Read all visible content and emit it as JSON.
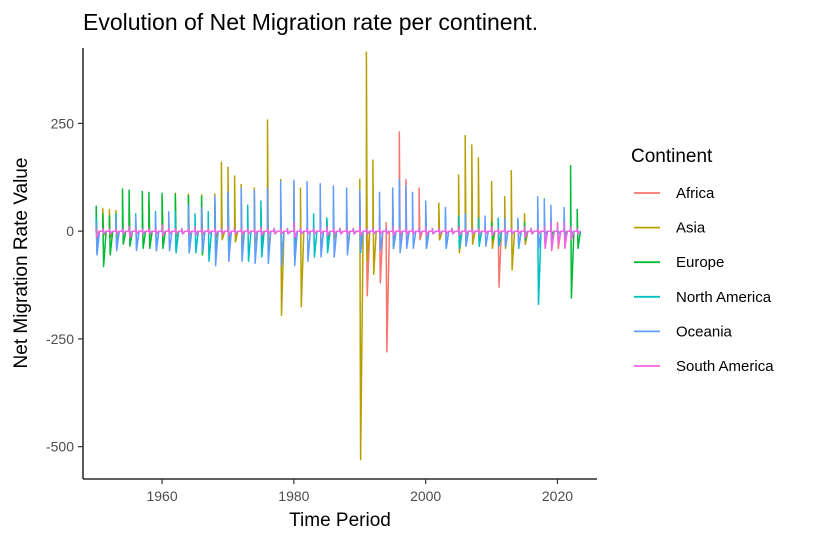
{
  "chart_data": {
    "type": "line",
    "title": "Evolution of Net Migration rate per continent.",
    "xlabel": "Time Period",
    "ylabel": "Net Migration Rate Value",
    "xlim": [
      1948,
      2026
    ],
    "ylim": [
      -575,
      425
    ],
    "xticks": [
      1960,
      1980,
      2000,
      2020
    ],
    "yticks": [
      -500,
      -250,
      0,
      250
    ],
    "grid": false,
    "legend": {
      "title": "Continent",
      "position": "right"
    },
    "series": [
      {
        "name": "Africa",
        "color": "#F8766D",
        "spikes": [
          [
            1955,
            5,
            -5
          ],
          [
            1960,
            10,
            -8
          ],
          [
            1970,
            12,
            -10
          ],
          [
            1980,
            20,
            -20
          ],
          [
            1985,
            25,
            -15
          ],
          [
            1990,
            90,
            -40
          ],
          [
            1991,
            55,
            -150
          ],
          [
            1993,
            40,
            -120
          ],
          [
            1994,
            20,
            -280
          ],
          [
            1996,
            230,
            -20
          ],
          [
            1997,
            120,
            -30
          ],
          [
            1999,
            100,
            -20
          ],
          [
            2002,
            30,
            -20
          ],
          [
            2005,
            25,
            -15
          ],
          [
            2011,
            20,
            -130
          ],
          [
            2015,
            15,
            -30
          ],
          [
            2020,
            20,
            -40
          ]
        ]
      },
      {
        "name": "Asia",
        "color": "#B79F00",
        "spikes": [
          [
            1951,
            52,
            -10
          ],
          [
            1952,
            50,
            -15
          ],
          [
            1953,
            48,
            -20
          ],
          [
            1955,
            60,
            -10
          ],
          [
            1958,
            70,
            -12
          ],
          [
            1960,
            78,
            -10
          ],
          [
            1962,
            88,
            -12
          ],
          [
            1964,
            86,
            -10
          ],
          [
            1966,
            84,
            -10
          ],
          [
            1968,
            86,
            -15
          ],
          [
            1969,
            160,
            -20
          ],
          [
            1970,
            148,
            -20
          ],
          [
            1971,
            128,
            -25
          ],
          [
            1972,
            108,
            -30
          ],
          [
            1974,
            100,
            -30
          ],
          [
            1976,
            258,
            -40
          ],
          [
            1978,
            120,
            -195
          ],
          [
            1980,
            108,
            -60
          ],
          [
            1981,
            100,
            -175
          ],
          [
            1984,
            60,
            -40
          ],
          [
            1986,
            50,
            -20
          ],
          [
            1988,
            40,
            -30
          ],
          [
            1990,
            120,
            -530
          ],
          [
            1991,
            415,
            -70
          ],
          [
            1992,
            165,
            -100
          ],
          [
            1995,
            100,
            -40
          ],
          [
            2000,
            60,
            -30
          ],
          [
            2002,
            65,
            -20
          ],
          [
            2005,
            130,
            -50
          ],
          [
            2006,
            222,
            -30
          ],
          [
            2007,
            200,
            -30
          ],
          [
            2008,
            170,
            -30
          ],
          [
            2010,
            115,
            -40
          ],
          [
            2012,
            80,
            -40
          ],
          [
            2013,
            140,
            -90
          ],
          [
            2015,
            40,
            -30
          ],
          [
            2019,
            30,
            -20
          ]
        ]
      },
      {
        "name": "Europe",
        "color": "#00BA38",
        "spikes": [
          [
            1950,
            58,
            -20
          ],
          [
            1951,
            40,
            -82
          ],
          [
            1952,
            35,
            -55
          ],
          [
            1954,
            98,
            -30
          ],
          [
            1955,
            95,
            -35
          ],
          [
            1957,
            92,
            -40
          ],
          [
            1958,
            90,
            -40
          ],
          [
            1960,
            88,
            -40
          ],
          [
            1962,
            86,
            -45
          ],
          [
            1964,
            82,
            -50
          ],
          [
            1966,
            80,
            -55
          ],
          [
            1968,
            75,
            -50
          ],
          [
            1970,
            70,
            -45
          ],
          [
            1975,
            50,
            -30
          ],
          [
            1980,
            40,
            -40
          ],
          [
            1985,
            30,
            -20
          ],
          [
            1990,
            20,
            -20
          ],
          [
            1995,
            20,
            -20
          ],
          [
            2000,
            20,
            -20
          ],
          [
            2005,
            15,
            -20
          ],
          [
            2010,
            20,
            -20
          ],
          [
            2015,
            20,
            -20
          ],
          [
            2022,
            152,
            -155
          ],
          [
            2023,
            50,
            -40
          ]
        ]
      },
      {
        "name": "North America",
        "color": "#00BFC4",
        "spikes": [
          [
            1950,
            30,
            -50
          ],
          [
            1953,
            40,
            -40
          ],
          [
            1956,
            40,
            -40
          ],
          [
            1959,
            45,
            -45
          ],
          [
            1962,
            45,
            -50
          ],
          [
            1965,
            40,
            -50
          ],
          [
            1967,
            45,
            -70
          ],
          [
            1970,
            90,
            -60
          ],
          [
            1973,
            60,
            -70
          ],
          [
            1975,
            70,
            -60
          ],
          [
            1978,
            50,
            -60
          ],
          [
            1980,
            50,
            -60
          ],
          [
            1983,
            40,
            -60
          ],
          [
            1985,
            30,
            -50
          ],
          [
            1990,
            30,
            -50
          ],
          [
            1995,
            30,
            -40
          ],
          [
            2000,
            40,
            -40
          ],
          [
            2003,
            40,
            -40
          ],
          [
            2005,
            35,
            -40
          ],
          [
            2008,
            30,
            -35
          ],
          [
            2011,
            30,
            -35
          ],
          [
            2014,
            25,
            -40
          ],
          [
            2017,
            40,
            -170
          ],
          [
            2019,
            20,
            -30
          ],
          [
            2021,
            30,
            -20
          ]
        ]
      },
      {
        "name": "Oceania",
        "color": "#619CFF",
        "spikes": [
          [
            1950,
            20,
            -55
          ],
          [
            1953,
            30,
            -45
          ],
          [
            1956,
            35,
            -45
          ],
          [
            1959,
            40,
            -45
          ],
          [
            1961,
            45,
            -45
          ],
          [
            1964,
            60,
            -50
          ],
          [
            1966,
            55,
            -45
          ],
          [
            1968,
            80,
            -80
          ],
          [
            1970,
            90,
            -70
          ],
          [
            1972,
            100,
            -70
          ],
          [
            1974,
            95,
            -75
          ],
          [
            1976,
            100,
            -75
          ],
          [
            1978,
            115,
            -80
          ],
          [
            1980,
            118,
            -80
          ],
          [
            1982,
            115,
            -70
          ],
          [
            1984,
            110,
            -60
          ],
          [
            1986,
            105,
            -60
          ],
          [
            1988,
            100,
            -55
          ],
          [
            1990,
            95,
            -45
          ],
          [
            1993,
            90,
            -45
          ],
          [
            1995,
            100,
            -40
          ],
          [
            1996,
            120,
            -50
          ],
          [
            1997,
            105,
            -40
          ],
          [
            1998,
            90,
            -40
          ],
          [
            2000,
            70,
            -40
          ],
          [
            2003,
            55,
            -40
          ],
          [
            2006,
            40,
            -35
          ],
          [
            2009,
            35,
            -35
          ],
          [
            2012,
            30,
            -35
          ],
          [
            2014,
            30,
            -35
          ],
          [
            2017,
            80,
            -40
          ],
          [
            2018,
            75,
            -30
          ],
          [
            2019,
            60,
            -40
          ],
          [
            2021,
            55,
            -30
          ]
        ]
      },
      {
        "name": "South America",
        "color": "#F564E3",
        "spikes": [
          [
            1950,
            5,
            -15
          ],
          [
            1955,
            10,
            -15
          ],
          [
            1960,
            15,
            -10
          ],
          [
            1965,
            10,
            -10
          ],
          [
            1970,
            10,
            -10
          ],
          [
            1975,
            10,
            -10
          ],
          [
            1980,
            20,
            -15
          ],
          [
            1985,
            10,
            -10
          ],
          [
            1990,
            10,
            -10
          ],
          [
            1995,
            10,
            -10
          ],
          [
            2000,
            10,
            -10
          ],
          [
            2005,
            10,
            -10
          ],
          [
            2010,
            10,
            -10
          ],
          [
            2015,
            10,
            -15
          ],
          [
            2018,
            10,
            -40
          ],
          [
            2019,
            20,
            -45
          ],
          [
            2020,
            15,
            -30
          ],
          [
            2021,
            20,
            -40
          ],
          [
            2022,
            10,
            -20
          ]
        ]
      }
    ]
  }
}
